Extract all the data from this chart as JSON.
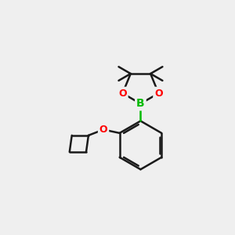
{
  "bg_color": "#efefef",
  "bond_color": "#1a1a1a",
  "boron_color": "#00bb00",
  "oxygen_color": "#ff0000",
  "bond_width": 1.8,
  "fig_size": [
    3.0,
    3.0
  ],
  "dpi": 100,
  "xlim": [
    0,
    10
  ],
  "ylim": [
    0,
    10
  ]
}
